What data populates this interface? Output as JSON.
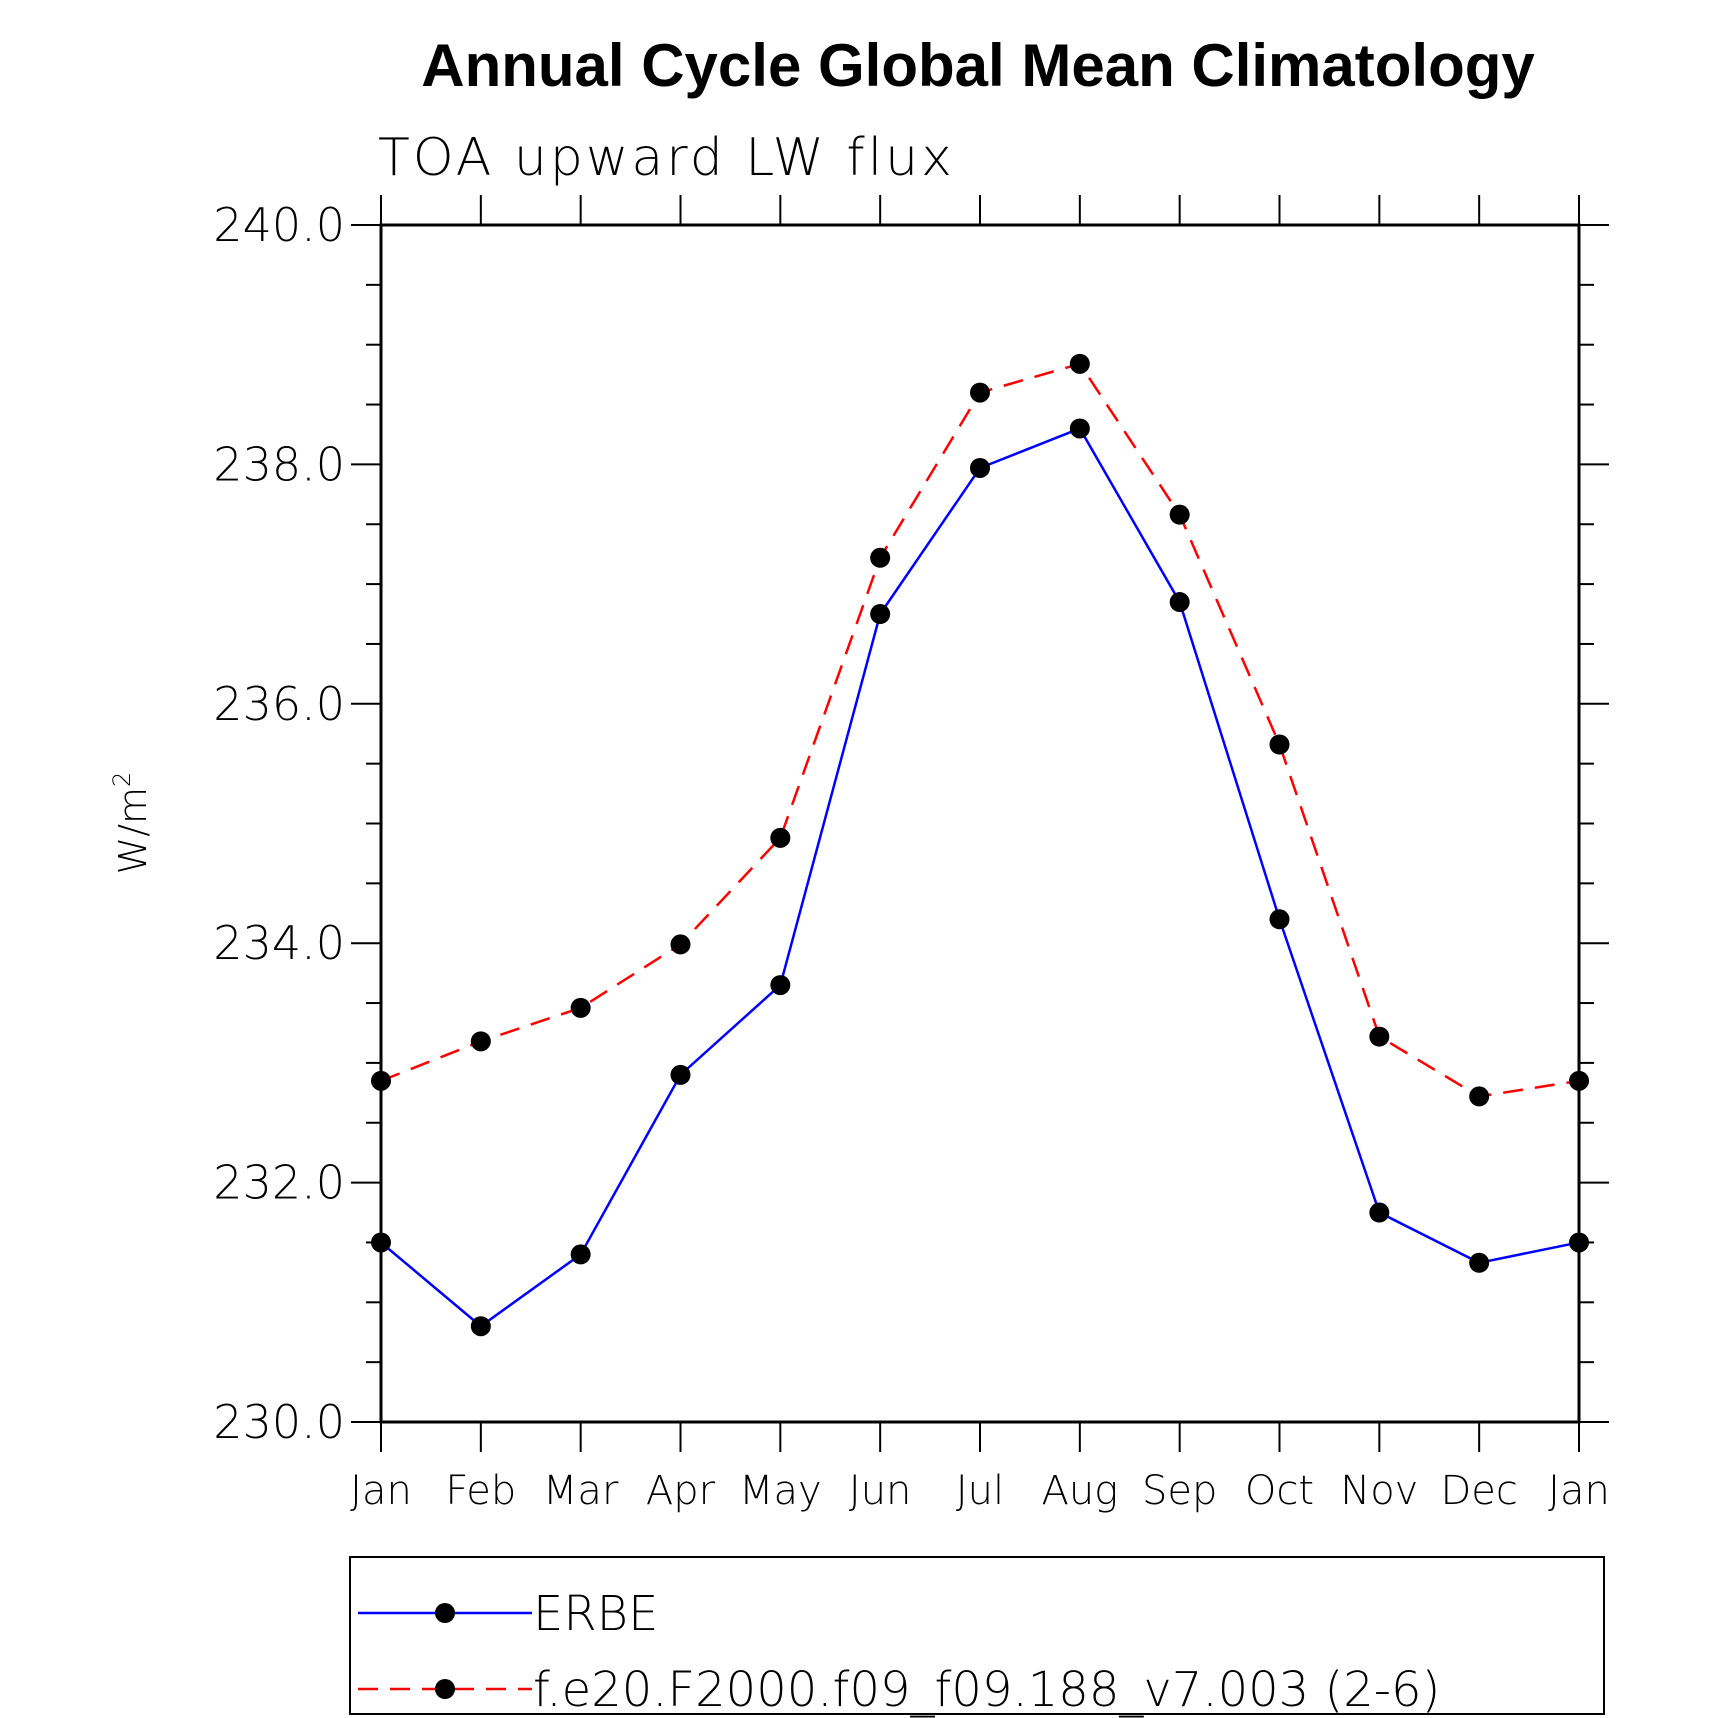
{
  "chart_data": {
    "type": "line",
    "title": "Annual Cycle Global Mean Climatology",
    "subtitle": "TOA upward LW flux",
    "ylabel": "W/m",
    "ylabel_sup": "2",
    "ylim": [
      230.0,
      240.0
    ],
    "yticks": [
      "230.0",
      "232.0",
      "234.0",
      "236.0",
      "238.0",
      "240.0"
    ],
    "categories": [
      "Jan",
      "Feb",
      "Mar",
      "Apr",
      "May",
      "Jun",
      "Jul",
      "Aug",
      "Sep",
      "Oct",
      "Nov",
      "Dec",
      "Jan"
    ],
    "grid": false,
    "legend_position": "bottom",
    "series": [
      {
        "name": "ERBE",
        "color": "#0000ff",
        "dash": "solid",
        "marker": "filled-circle",
        "values": [
          231.5,
          230.8,
          231.4,
          232.9,
          233.65,
          236.75,
          237.97,
          238.3,
          236.85,
          234.2,
          231.75,
          231.33,
          231.5
        ]
      },
      {
        "name": "f.e20.F2000.f09_f09.188_v7.003 (2-6)",
        "color": "#ff0000",
        "dash": "dashed",
        "marker": "filled-circle",
        "values": [
          232.85,
          233.18,
          233.46,
          233.99,
          234.88,
          237.22,
          238.6,
          238.84,
          237.58,
          235.66,
          233.22,
          232.72,
          232.85
        ]
      }
    ]
  }
}
